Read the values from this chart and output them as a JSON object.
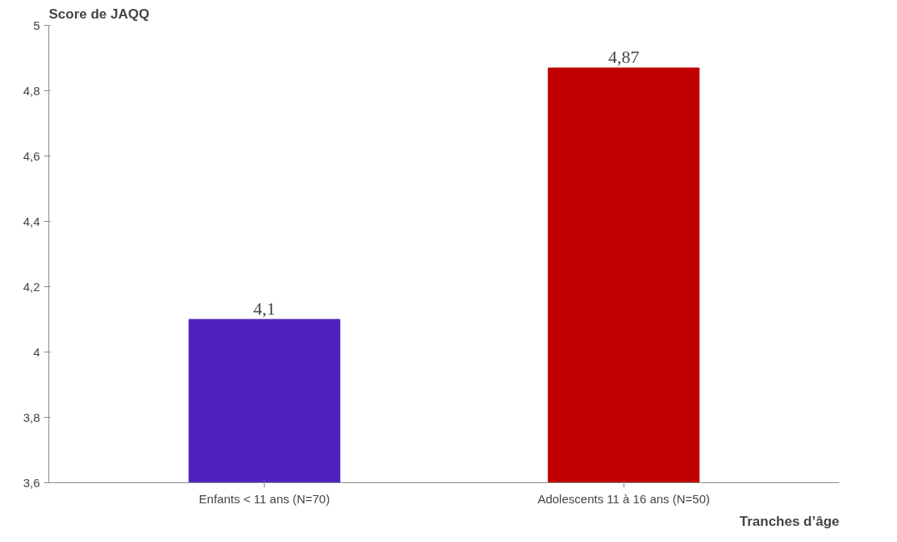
{
  "chart_data": {
    "type": "bar",
    "ylabel": "Score de JAQQ",
    "xlabel": "Tranches d’âge",
    "categories": [
      "Enfants < 11 ans (N=70)",
      "Adolescents 11 à 16 ans (N=50)"
    ],
    "values": [
      4.1,
      4.87
    ],
    "colors": [
      "#4f22c0",
      "#c00000"
    ],
    "value_labels": [
      "4,1",
      "4,87"
    ],
    "ylim": [
      3.6,
      5
    ],
    "yticks": [
      {
        "value": 3.6,
        "label": "3,6"
      },
      {
        "value": 3.8,
        "label": "3,8"
      },
      4,
      {
        "value": 4.2,
        "label": "4,2"
      },
      {
        "value": 4.4,
        "label": "4,4"
      },
      {
        "value": 4.6,
        "label": "4,6"
      },
      {
        "value": 4.8,
        "label": "4,8"
      },
      5
    ],
    "grid": false
  }
}
